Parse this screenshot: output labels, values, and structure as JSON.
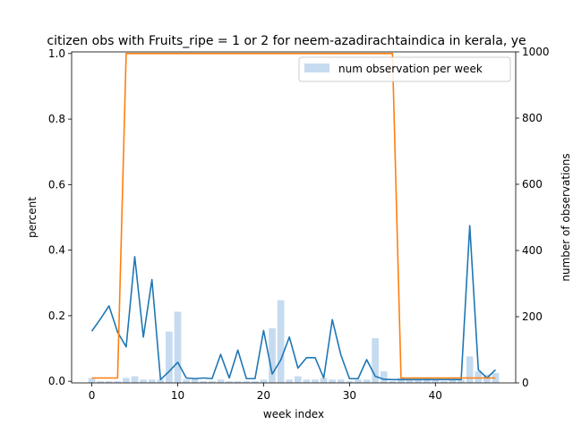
{
  "chart_data": {
    "type": "line",
    "title": "citizen obs with Fruits_ripe = 1 or 2 for neem-azadirachtaindica in kerala, ye",
    "xlabel": "week index",
    "ylabel": "percent",
    "y2label": "number of observations",
    "xlim": [
      -2.35,
      49.35
    ],
    "ylim": [
      -0.005,
      1.005
    ],
    "y2lim": [
      0,
      1000
    ],
    "xticks": [
      0,
      10,
      20,
      30,
      40
    ],
    "yticks": [
      0.0,
      0.2,
      0.4,
      0.6,
      0.8,
      1.0
    ],
    "ytick_labels": [
      "0.0",
      "0.2",
      "0.4",
      "0.6",
      "0.8",
      "1.0"
    ],
    "y2ticks": [
      0,
      200,
      400,
      600,
      800,
      1000
    ],
    "legend": {
      "placement": "top-right",
      "label": "num observation per week"
    },
    "x": [
      0,
      1,
      2,
      3,
      4,
      5,
      6,
      7,
      8,
      9,
      10,
      11,
      12,
      13,
      14,
      15,
      16,
      17,
      18,
      19,
      20,
      21,
      22,
      23,
      24,
      25,
      26,
      27,
      28,
      29,
      30,
      31,
      32,
      33,
      34,
      35,
      36,
      37,
      38,
      39,
      40,
      41,
      42,
      43,
      44,
      45,
      46,
      47
    ],
    "bars": {
      "name": "num observation per week",
      "color": "#c6dbef",
      "values": [
        15,
        5,
        5,
        5,
        15,
        20,
        10,
        10,
        10,
        155,
        215,
        10,
        15,
        5,
        5,
        10,
        5,
        5,
        5,
        5,
        10,
        165,
        250,
        10,
        20,
        10,
        10,
        15,
        10,
        10,
        5,
        10,
        10,
        135,
        35,
        5,
        15,
        10,
        10,
        15,
        10,
        5,
        10,
        10,
        80,
        35,
        25,
        30
      ]
    },
    "series": [
      {
        "color": "#1f77b4",
        "values": [
          0.153,
          0.19,
          0.23,
          0.15,
          0.105,
          0.38,
          0.135,
          0.31,
          0.005,
          0.03,
          0.058,
          0.01,
          0.008,
          0.01,
          0.008,
          0.082,
          0.01,
          0.095,
          0.008,
          0.008,
          0.155,
          0.022,
          0.065,
          0.135,
          0.04,
          0.072,
          0.072,
          0.01,
          0.188,
          0.08,
          0.008,
          0.008,
          0.066,
          0.015,
          0.006,
          0.005,
          0.005,
          0.005,
          0.005,
          0.005,
          0.005,
          0.005,
          0.005,
          0.005,
          0.475,
          0.035,
          0.01,
          0.035
        ]
      },
      {
        "color": "#ff7f0e",
        "values": [
          0.01,
          0.01,
          0.01,
          0.01,
          1,
          1,
          1,
          1,
          1,
          1,
          1,
          1,
          1,
          1,
          1,
          1,
          1,
          1,
          1,
          1,
          1,
          1,
          1,
          1,
          1,
          1,
          1,
          1,
          1,
          1,
          1,
          1,
          1,
          1,
          1,
          1,
          0.01,
          0.01,
          0.01,
          0.01,
          0.01,
          0.01,
          0.01,
          0.01,
          0.01,
          0.01,
          0.01,
          0.01
        ]
      }
    ]
  }
}
